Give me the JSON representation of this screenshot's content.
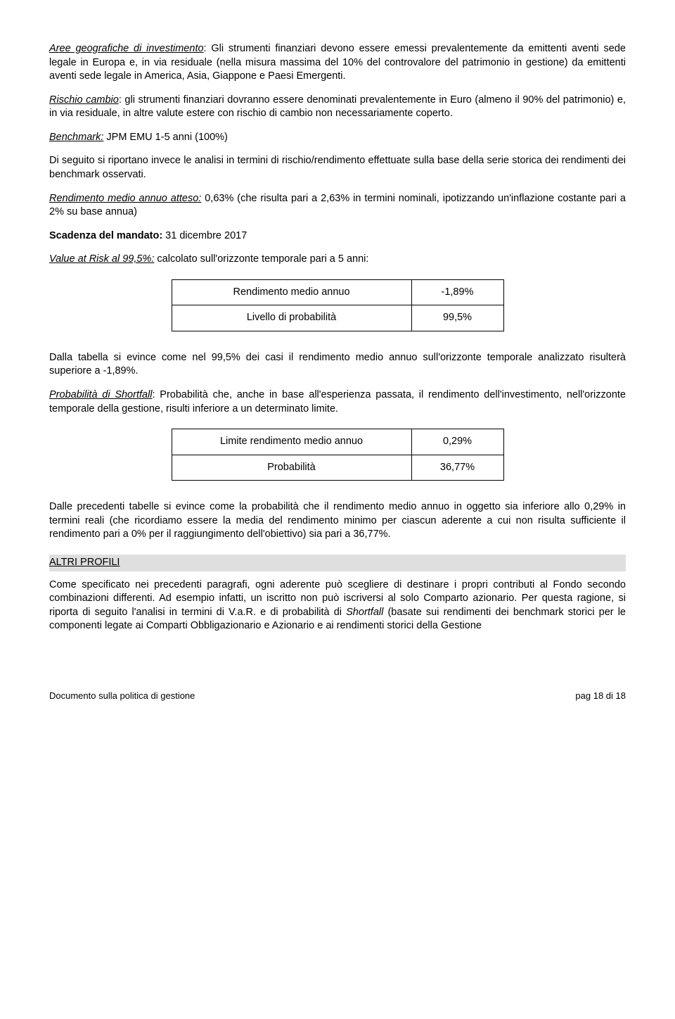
{
  "p1_prefix": "Aree geografiche di investimento",
  "p1_rest": ": Gli strumenti finanziari devono essere emessi prevalentemente da emittenti aventi sede legale in Europa e, in via residuale (nella misura massima del 10% del controvalore del patrimonio in gestione) da emittenti aventi sede legale in America, Asia, Giappone e Paesi Emergenti.",
  "p2_prefix": "Rischio cambio",
  "p2_rest": ": gli strumenti finanziari dovranno essere denominati prevalentemente in Euro (almeno il 90% del patrimonio) e, in via residuale, in altre valute estere con rischio di cambio non necessariamente coperto.",
  "p3_prefix": "Benchmark:",
  "p3_rest": " JPM EMU 1-5 anni (100%)",
  "p4": "Di seguito si riportano invece le analisi in termini di rischio/rendimento effettuate sulla base della serie storica dei rendimenti dei benchmark osservati.",
  "p5_prefix": "Rendimento medio annuo atteso:",
  "p5_rest": " 0,63% (che risulta pari a 2,63% in termini nominali, ipotizzando un'inflazione costante pari a 2% su base annua)",
  "p6_prefix": "Scadenza del mandato:",
  "p6_rest": " 31 dicembre 2017",
  "p7_prefix": "Value at Risk al 99,5%:",
  "p7_rest": " calcolato sull'orizzonte temporale pari a 5 anni:",
  "table1": {
    "rows": [
      {
        "label": "Rendimento medio annuo",
        "value": "-1,89%"
      },
      {
        "label": "Livello di probabilità",
        "value": "99,5%"
      }
    ]
  },
  "p8": "Dalla tabella si evince come nel 99,5% dei casi il rendimento medio annuo sull'orizzonte temporale analizzato risulterà superiore a -1,89%.",
  "p9_prefix": "Probabilità di Shortfall",
  "p9_rest": ": Probabilità che, anche in base all'esperienza passata, il rendimento dell'investimento, nell'orizzonte temporale della gestione, risulti inferiore a un determinato limite.",
  "table2": {
    "rows": [
      {
        "label": "Limite rendimento medio annuo",
        "value": "0,29%"
      },
      {
        "label": "Probabilità",
        "value": "36,77%"
      }
    ]
  },
  "p10": "Dalle precedenti tabelle si evince come la probabilità che il rendimento medio annuo in oggetto sia inferiore allo 0,29% in termini reali (che ricordiamo essere la media del rendimento minimo per ciascun aderente a cui non risulta sufficiente il rendimento pari a 0% per il raggiungimento dell'obiettivo) sia pari a 36,77%.",
  "section_header": "ALTRI PROFILI",
  "p11_a": "Come specificato nei precedenti paragrafi, ogni aderente può scegliere di destinare i propri contributi al Fondo secondo combinazioni differenti. Ad esempio infatti, un iscritto non può iscriversi al solo Comparto azionario. Per questa ragione, si riporta di seguito l'analisi in termini di V.a.R. e di probabilità di ",
  "p11_italic": "Shortfall",
  "p11_b": " (basate sui rendimenti dei benchmark storici per le componenti legate ai Comparti Obbligazionario e Azionario e ai rendimenti storici della Gestione",
  "footer_left": "Documento sulla politica di gestione",
  "footer_right": "pag 18 di 18"
}
